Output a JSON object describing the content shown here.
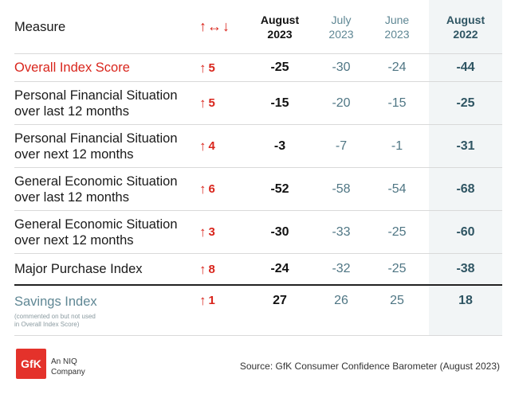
{
  "header": {
    "measure": "Measure",
    "change_symbol": "↑↔↓",
    "aug2023_month": "August",
    "aug2023_year": "2023",
    "july_month": "July",
    "july_year": "2023",
    "june_month": "June",
    "june_year": "2023",
    "aug2022_month": "August",
    "aug2022_year": "2022"
  },
  "rows": [
    {
      "measure": "Overall Index Score",
      "arrow": "↑",
      "change": "5",
      "aug2023": "-25",
      "july": "-30",
      "june": "-24",
      "aug2022": "-44"
    },
    {
      "measure_line1": "Personal Financial Situation",
      "measure_line2": "over last 12 months",
      "arrow": "↑",
      "change": "5",
      "aug2023": "-15",
      "july": "-20",
      "june": "-15",
      "aug2022": "-25"
    },
    {
      "measure_line1": "Personal Financial Situation",
      "measure_line2": "over next 12 months",
      "arrow": "↑",
      "change": "4",
      "aug2023": "-3",
      "july": "-7",
      "june": "-1",
      "aug2022": "-31"
    },
    {
      "measure_line1": "General Economic Situation",
      "measure_line2": "over last 12 months",
      "arrow": "↑",
      "change": "6",
      "aug2023": "-52",
      "july": "-58",
      "june": "-54",
      "aug2022": "-68"
    },
    {
      "measure_line1": "General Economic Situation",
      "measure_line2": "over next 12 months",
      "arrow": "↑",
      "change": "3",
      "aug2023": "-30",
      "july": "-33",
      "june": "-25",
      "aug2022": "-60"
    },
    {
      "measure": "Major Purchase Index",
      "arrow": "↑",
      "change": "8",
      "aug2023": "-24",
      "july": "-32",
      "june": "-25",
      "aug2022": "-38"
    }
  ],
  "savings": {
    "measure": "Savings Index",
    "note_line1": "(commented on but not used",
    "note_line2": "in Overall Index Score)",
    "arrow": "↑",
    "change": "1",
    "aug2023": "27",
    "july": "26",
    "june": "25",
    "aug2022": "18"
  },
  "footer": {
    "logo_text": "GfK",
    "company_line1": "An NIQ",
    "company_line2": "Company",
    "source": "Source: GfK Consumer Confidence Barometer (August 2023)"
  },
  "colors": {
    "accent_red": "#d9251c",
    "teal": "#4f7684",
    "logo_red": "#e4322b"
  }
}
